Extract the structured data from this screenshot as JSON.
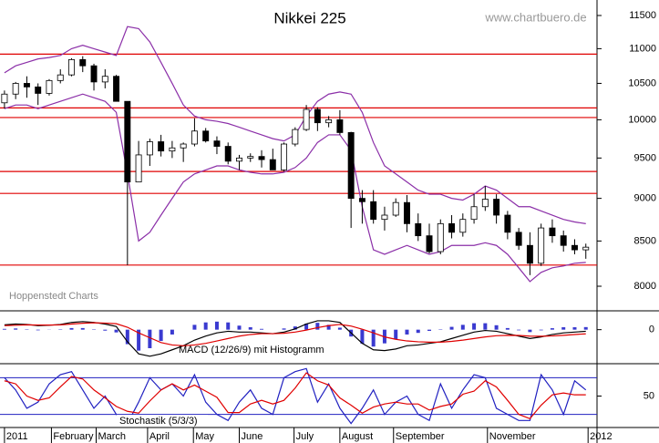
{
  "chart_data": {
    "type": "candlestick",
    "title": "Nikkei 225",
    "source": "www.chartbuero.de",
    "credit": "Hoppenstedt Charts",
    "log_scale": true,
    "x": [
      0,
      1,
      2,
      3,
      4,
      5,
      6,
      7,
      8,
      9,
      10,
      11,
      12,
      13,
      14,
      15,
      16,
      17,
      18,
      19,
      20,
      21,
      22,
      23,
      24,
      25,
      26,
      27,
      28,
      29,
      30,
      31,
      32,
      33,
      34,
      35,
      36,
      37,
      38,
      39,
      40,
      41,
      42,
      43,
      44,
      45,
      46,
      47,
      48,
      49,
      50,
      51,
      52
    ],
    "xlim": [
      -0.4,
      53
    ],
    "xticks": [
      {
        "value": 0,
        "label": "2011"
      },
      {
        "value": 4.2,
        "label": "February"
      },
      {
        "value": 8.2,
        "label": "March"
      },
      {
        "value": 12.8,
        "label": "April"
      },
      {
        "value": 16.9,
        "label": "May"
      },
      {
        "value": 21,
        "label": "June"
      },
      {
        "value": 25.9,
        "label": "July"
      },
      {
        "value": 30,
        "label": "August"
      },
      {
        "value": 34.8,
        "label": "September"
      },
      {
        "value": 43.2,
        "label": "November"
      },
      {
        "value": 52.2,
        "label": "2012"
      }
    ],
    "open": [
      10230,
      10350,
      10500,
      10450,
      10360,
      10540,
      10620,
      10840,
      10750,
      10520,
      10600,
      10250,
      9200,
      9540,
      9710,
      9590,
      9630,
      9680,
      9850,
      9720,
      9650,
      9460,
      9500,
      9520,
      9480,
      9350,
      9680,
      9870,
      10140,
      9960,
      10000,
      9830,
      9000,
      8960,
      8750,
      8800,
      8950,
      8700,
      8560,
      8380,
      8700,
      8600,
      8750,
      8900,
      8990,
      8800,
      8600,
      8450,
      8250,
      8650,
      8560,
      8450,
      8400
    ],
    "high": [
      10400,
      10520,
      10600,
      10500,
      10560,
      10700,
      10860,
      10890,
      10780,
      10700,
      10620,
      10250,
      9720,
      9750,
      9800,
      9720,
      9700,
      10020,
      9890,
      9780,
      9700,
      9540,
      9560,
      9600,
      9620,
      9700,
      9900,
      10200,
      10170,
      10050,
      10130,
      9840,
      9100,
      9100,
      8900,
      9000,
      9040,
      8820,
      8700,
      8750,
      8800,
      8820,
      9050,
      9150,
      9050,
      8850,
      8650,
      8600,
      8700,
      8750,
      8620,
      8520,
      8470
    ],
    "low": [
      10150,
      10280,
      10300,
      10200,
      10330,
      10500,
      10600,
      10660,
      10400,
      10430,
      10250,
      8230,
      9200,
      9400,
      9520,
      9500,
      9450,
      9650,
      9700,
      9550,
      9420,
      9350,
      9450,
      9380,
      9350,
      9330,
      9650,
      9850,
      9850,
      9900,
      9800,
      8650,
      8700,
      8700,
      8620,
      8780,
      8600,
      8500,
      8360,
      8350,
      8530,
      8550,
      8700,
      8850,
      8700,
      8520,
      8400,
      8120,
      8220,
      8480,
      8380,
      8350,
      8300
    ],
    "close": [
      10350,
      10500,
      10450,
      10360,
      10540,
      10620,
      10840,
      10750,
      10520,
      10600,
      10250,
      9200,
      9540,
      9710,
      9590,
      9630,
      9680,
      9850,
      9720,
      9650,
      9460,
      9500,
      9520,
      9480,
      9350,
      9680,
      9870,
      10140,
      9960,
      10000,
      9830,
      9000,
      8960,
      8750,
      8800,
      8950,
      8700,
      8560,
      8380,
      8700,
      8600,
      8750,
      8900,
      8990,
      8800,
      8600,
      8450,
      8250,
      8650,
      8560,
      8450,
      8400,
      8430
    ],
    "ylim": [
      7750,
      11670
    ],
    "yticks": [
      8000,
      8500,
      9000,
      9500,
      10000,
      10500,
      11000,
      11500
    ],
    "bands": [
      {
        "color": "#8b2fa8",
        "values": [
          10650,
          10750,
          10800,
          10850,
          10870,
          10900,
          11000,
          11050,
          11000,
          10950,
          10900,
          11330,
          11300,
          11100,
          10800,
          10500,
          10200,
          10050,
          10000,
          9980,
          9950,
          9900,
          9850,
          9800,
          9750,
          9720,
          9800,
          10050,
          10250,
          10350,
          10380,
          10350,
          10100,
          9700,
          9400,
          9300,
          9200,
          9100,
          9050,
          9050,
          9000,
          8980,
          9050,
          9150,
          9100,
          9000,
          8900,
          8900,
          8850,
          8800,
          8750,
          8720,
          8700
        ]
      },
      {
        "color": "#8b2fa8",
        "values": [
          10150,
          10200,
          10200,
          10150,
          10200,
          10250,
          10300,
          10350,
          10300,
          10250,
          10100,
          9300,
          8500,
          8600,
          8800,
          9000,
          9200,
          9300,
          9350,
          9400,
          9400,
          9350,
          9320,
          9300,
          9300,
          9320,
          9380,
          9500,
          9700,
          9800,
          9800,
          9600,
          8900,
          8400,
          8350,
          8400,
          8450,
          8400,
          8350,
          8380,
          8450,
          8450,
          8450,
          8480,
          8450,
          8350,
          8200,
          8050,
          8150,
          8200,
          8220,
          8250,
          8260
        ]
      }
    ],
    "levels": {
      "color": "#e00000",
      "values": [
        10920,
        10160,
        10030,
        9330,
        9060,
        8230
      ]
    },
    "panels": [
      {
        "type": "line",
        "label": "MACD (12/26/9) mit Histogramm",
        "ylim": [
          -400,
          200
        ],
        "yticks": [
          0
        ],
        "series": [
          {
            "type": "bar",
            "color": "#3a3ad0",
            "values": [
              10,
              15,
              5,
              -8,
              -2,
              5,
              20,
              20,
              5,
              -12,
              -34,
              -180,
              -260,
              -230,
              -140,
              -60,
              0,
              60,
              90,
              100,
              90,
              50,
              30,
              10,
              0,
              15,
              40,
              75,
              85,
              60,
              25,
              -85,
              -175,
              -210,
              -170,
              -120,
              -60,
              -40,
              -15,
              5,
              35,
              60,
              80,
              80,
              55,
              20,
              -8,
              -30,
              -8,
              18,
              30,
              30,
              32
            ]
          },
          {
            "type": "line",
            "color": "#000000",
            "values": [
              60,
              70,
              65,
              50,
              55,
              65,
              90,
              100,
              90,
              70,
              40,
              -150,
              -300,
              -330,
              -300,
              -250,
              -200,
              -130,
              -80,
              -40,
              -20,
              -30,
              -30,
              -40,
              -50,
              -30,
              10,
              70,
              110,
              110,
              90,
              -40,
              -170,
              -250,
              -260,
              -240,
              -200,
              -190,
              -170,
              -150,
              -110,
              -70,
              -30,
              -10,
              -20,
              -50,
              -80,
              -110,
              -90,
              -60,
              -40,
              -30,
              -20
            ]
          },
          {
            "type": "line",
            "color": "#e00000",
            "values": [
              50,
              55,
              60,
              58,
              57,
              60,
              70,
              80,
              85,
              82,
              74,
              30,
              -40,
              -100,
              -160,
              -190,
              -200,
              -190,
              -170,
              -140,
              -110,
              -80,
              -60,
              -50,
              -50,
              -45,
              -30,
              -5,
              25,
              50,
              65,
              45,
              5,
              -40,
              -90,
              -120,
              -140,
              -150,
              -155,
              -155,
              -145,
              -130,
              -110,
              -90,
              -75,
              -70,
              -72,
              -80,
              -82,
              -78,
              -70,
              -60,
              -52
            ]
          }
        ]
      },
      {
        "type": "line",
        "label": "Stochastik (5/3/3)",
        "ylim": [
          0,
          100
        ],
        "yticks": [
          50
        ],
        "levels": {
          "color": "#2020c0",
          "values": [
            20,
            80
          ]
        },
        "series": [
          {
            "type": "line",
            "color": "#2020c0",
            "values": [
              80,
              60,
              30,
              40,
              70,
              85,
              90,
              60,
              30,
              50,
              20,
              5,
              40,
              80,
              60,
              70,
              50,
              85,
              40,
              20,
              10,
              40,
              60,
              30,
              20,
              80,
              90,
              95,
              40,
              70,
              30,
              5,
              30,
              60,
              20,
              40,
              50,
              20,
              10,
              70,
              30,
              60,
              85,
              80,
              30,
              20,
              10,
              10,
              85,
              60,
              20,
              75,
              60
            ]
          },
          {
            "type": "line",
            "color": "#e00000",
            "values": [
              75,
              70,
              50,
              43,
              47,
              65,
              82,
              78,
              60,
              47,
              33,
              25,
              22,
              42,
              60,
              70,
              60,
              68,
              58,
              48,
              23,
              23,
              37,
              43,
              37,
              43,
              63,
              88,
              75,
              68,
              47,
              35,
              22,
              32,
              37,
              40,
              37,
              37,
              27,
              33,
              37,
              53,
              58,
              75,
              65,
              43,
              20,
              13,
              35,
              52,
              55,
              52,
              52
            ]
          }
        ]
      }
    ]
  }
}
